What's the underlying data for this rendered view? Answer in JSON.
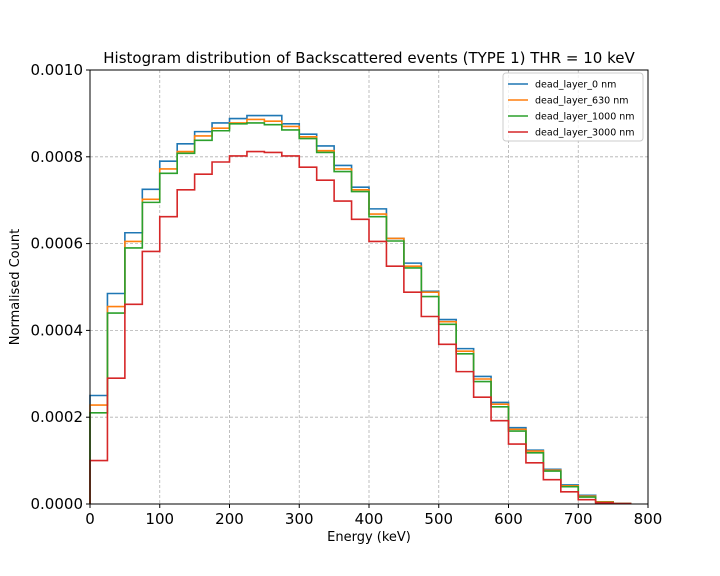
{
  "chart_data": {
    "type": "line",
    "title": "Histogram distribution of Backscattered events (TYPE 1) THR = 10 keV",
    "xlabel": "Energy (keV)",
    "ylabel": "Normalised Count",
    "xlim": [
      0,
      800
    ],
    "ylim": [
      0,
      0.001
    ],
    "xticks": [
      "0",
      "100",
      "200",
      "300",
      "400",
      "500",
      "600",
      "700",
      "800"
    ],
    "yticks": [
      "0.0000",
      "0.0002",
      "0.0004",
      "0.0006",
      "0.0008",
      "0.0010"
    ],
    "grid": true,
    "legend_position": "top-right",
    "bin_edges": [
      0,
      25,
      50,
      75,
      100,
      125,
      150,
      175,
      200,
      225,
      250,
      275,
      300,
      325,
      350,
      375,
      400,
      425,
      450,
      475,
      500,
      525,
      550,
      575,
      600,
      625,
      650,
      675,
      700,
      725,
      750,
      775
    ],
    "series": [
      {
        "name": "dead_layer_0 nm",
        "color": "#1f77b4",
        "values": [
          0.00025,
          0.000485,
          0.000625,
          0.000725,
          0.00079,
          0.00083,
          0.000858,
          0.000878,
          0.000888,
          0.000895,
          0.000895,
          0.000876,
          0.000852,
          0.000825,
          0.00078,
          0.00073,
          0.00068,
          0.000612,
          0.000555,
          0.00049,
          0.000425,
          0.000358,
          0.000294,
          0.000234,
          0.000176,
          0.000124,
          8e-05,
          4.4e-05,
          2e-05,
          5e-06,
          1e-06
        ]
      },
      {
        "name": "dead_layer_630 nm",
        "color": "#ff7f0e",
        "values": [
          0.000228,
          0.000455,
          0.000605,
          0.000702,
          0.000772,
          0.000812,
          0.000848,
          0.000866,
          0.000878,
          0.000886,
          0.000882,
          0.00087,
          0.000846,
          0.000814,
          0.000772,
          0.000724,
          0.000668,
          0.000612,
          0.000548,
          0.000488,
          0.00042,
          0.000352,
          0.000288,
          0.00023,
          0.000172,
          0.000122,
          7.8e-05,
          4.2e-05,
          1.8e-05,
          5e-06,
          1e-06
        ]
      },
      {
        "name": "dead_layer_1000 nm",
        "color": "#2ca02c",
        "values": [
          0.00021,
          0.00044,
          0.00059,
          0.000695,
          0.000762,
          0.000808,
          0.000838,
          0.00086,
          0.000876,
          0.000878,
          0.000874,
          0.000862,
          0.000842,
          0.00081,
          0.000766,
          0.00072,
          0.000662,
          0.000606,
          0.000544,
          0.000478,
          0.000414,
          0.000346,
          0.000282,
          0.000224,
          0.000168,
          0.000118,
          7.6e-05,
          4e-05,
          1.6e-05,
          4e-06,
          1e-06
        ]
      },
      {
        "name": "dead_layer_3000 nm",
        "color": "#d62728",
        "values": [
          0.0001,
          0.00029,
          0.00046,
          0.000582,
          0.000662,
          0.000724,
          0.00076,
          0.000788,
          0.000802,
          0.000812,
          0.00081,
          0.000802,
          0.000776,
          0.000746,
          0.000698,
          0.000656,
          0.000605,
          0.000548,
          0.000488,
          0.000432,
          0.000368,
          0.000305,
          0.000246,
          0.000192,
          0.000138,
          9.5e-05,
          5.6e-05,
          2.8e-05,
          1e-05,
          3e-06,
          1e-06
        ]
      }
    ]
  }
}
